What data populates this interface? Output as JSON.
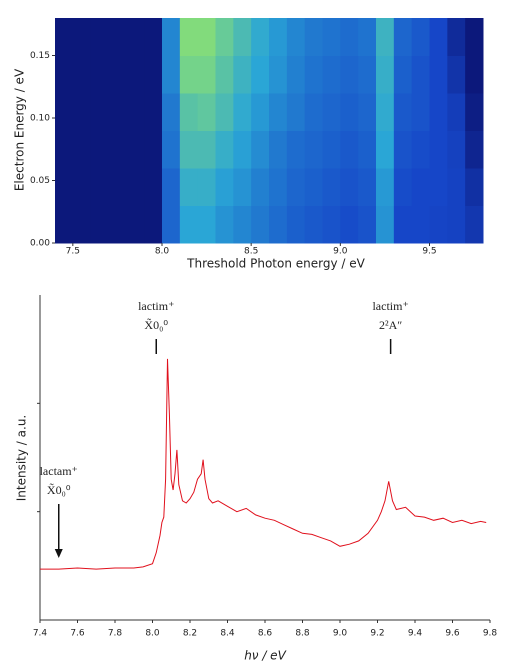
{
  "chart_data": [
    {
      "type": "heatmap",
      "x_label": "Threshold Photon energy / eV",
      "y_label": "Electron Energy / eV",
      "xlim": [
        7.4,
        9.8
      ],
      "ylim": [
        0,
        0.18
      ],
      "xticks": [
        7.5,
        {
          "value": 8,
          "label": "8.0"
        },
        8.5,
        {
          "value": 9,
          "label": "9.0"
        },
        9.5
      ],
      "yticks": [
        {
          "value": 0,
          "label": "0.00"
        },
        0.05,
        {
          "value": 0.1,
          "label": "0.10"
        },
        0.15
      ],
      "xbins": [
        7.4,
        7.5,
        7.6,
        7.7,
        7.8,
        7.9,
        8.0,
        8.1,
        8.2,
        8.3,
        8.4,
        8.5,
        8.6,
        8.7,
        8.8,
        8.9,
        9.0,
        9.1,
        9.2,
        9.3,
        9.4,
        9.5,
        9.6,
        9.7,
        9.8
      ],
      "ybins": [
        0,
        0.03,
        0.06,
        0.09,
        0.12,
        0.15,
        0.18
      ],
      "colormap": [
        [
          0,
          "#0a0f6b"
        ],
        [
          0.3,
          "#1646c8"
        ],
        [
          0.45,
          "#2aa6d6"
        ],
        [
          0.6,
          "#8fe36e"
        ]
      ],
      "z": [
        [
          0.05,
          0.05,
          0.05,
          0.05,
          0.05,
          0.05,
          0.35,
          0.45,
          0.45,
          0.42,
          0.4,
          0.38,
          0.36,
          0.34,
          0.33,
          0.32,
          0.31,
          0.32,
          0.42,
          0.3,
          0.3,
          0.29,
          0.28,
          0.22
        ],
        [
          0.05,
          0.05,
          0.05,
          0.05,
          0.05,
          0.05,
          0.35,
          0.47,
          0.47,
          0.44,
          0.42,
          0.39,
          0.37,
          0.35,
          0.34,
          0.33,
          0.32,
          0.33,
          0.43,
          0.31,
          0.3,
          0.3,
          0.28,
          0.18
        ],
        [
          0.05,
          0.05,
          0.05,
          0.05,
          0.05,
          0.05,
          0.37,
          0.5,
          0.5,
          0.47,
          0.44,
          0.41,
          0.38,
          0.36,
          0.35,
          0.34,
          0.33,
          0.34,
          0.45,
          0.32,
          0.31,
          0.3,
          0.27,
          0.12
        ],
        [
          0.05,
          0.05,
          0.05,
          0.05,
          0.05,
          0.05,
          0.38,
          0.52,
          0.53,
          0.5,
          0.46,
          0.43,
          0.4,
          0.38,
          0.36,
          0.35,
          0.34,
          0.35,
          0.46,
          0.33,
          0.32,
          0.3,
          0.25,
          0.08
        ],
        [
          0.05,
          0.05,
          0.05,
          0.05,
          0.05,
          0.05,
          0.4,
          0.56,
          0.56,
          0.52,
          0.48,
          0.45,
          0.42,
          0.39,
          0.37,
          0.36,
          0.35,
          0.36,
          0.47,
          0.34,
          0.32,
          0.3,
          0.2,
          0.05
        ],
        [
          0.05,
          0.05,
          0.05,
          0.05,
          0.05,
          0.05,
          0.4,
          0.58,
          0.58,
          0.54,
          0.5,
          0.46,
          0.43,
          0.4,
          0.38,
          0.37,
          0.36,
          0.37,
          0.48,
          0.35,
          0.33,
          0.3,
          0.15,
          0.05
        ]
      ]
    },
    {
      "type": "line",
      "x_label": "hν / eV",
      "y_label": "Intensity / a.u.",
      "xlim": [
        7.4,
        9.8
      ],
      "ylim": [
        0,
        3
      ],
      "xticks": [
        7.4,
        7.6,
        7.8,
        {
          "value": 8,
          "label": "8.0"
        },
        8.2,
        8.4,
        8.6,
        8.8,
        {
          "value": 9,
          "label": "9.0"
        },
        9.2,
        9.4,
        9.6,
        9.8
      ],
      "yticks": [
        1,
        2
      ],
      "ytick_labels": false,
      "color": "#e0101c",
      "x": [
        7.4,
        7.5,
        7.6,
        7.7,
        7.8,
        7.9,
        7.95,
        8.0,
        8.02,
        8.04,
        8.05,
        8.06,
        8.07,
        8.08,
        8.09,
        8.1,
        8.11,
        8.12,
        8.13,
        8.14,
        8.16,
        8.18,
        8.2,
        8.22,
        8.24,
        8.26,
        8.27,
        8.28,
        8.3,
        8.32,
        8.35,
        8.4,
        8.45,
        8.5,
        8.55,
        8.6,
        8.65,
        8.7,
        8.75,
        8.8,
        8.85,
        8.9,
        8.95,
        9.0,
        9.05,
        9.1,
        9.15,
        9.2,
        9.22,
        9.24,
        9.26,
        9.28,
        9.3,
        9.35,
        9.4,
        9.45,
        9.5,
        9.55,
        9.6,
        9.65,
        9.7,
        9.75,
        9.78
      ],
      "values": [
        0.47,
        0.47,
        0.48,
        0.47,
        0.48,
        0.48,
        0.49,
        0.52,
        0.62,
        0.78,
        0.9,
        0.95,
        1.3,
        2.41,
        1.9,
        1.3,
        1.2,
        1.35,
        1.57,
        1.25,
        1.1,
        1.08,
        1.12,
        1.18,
        1.3,
        1.35,
        1.48,
        1.3,
        1.12,
        1.08,
        1.1,
        1.05,
        1.0,
        1.03,
        0.97,
        0.94,
        0.92,
        0.88,
        0.84,
        0.8,
        0.79,
        0.76,
        0.73,
        0.68,
        0.7,
        0.73,
        0.8,
        0.92,
        1.0,
        1.1,
        1.28,
        1.1,
        1.02,
        1.04,
        0.96,
        0.95,
        0.92,
        0.94,
        0.9,
        0.92,
        0.89,
        0.91,
        0.9
      ],
      "annotations": [
        {
          "x": 8.02,
          "line1": "lactim⁺",
          "line2": "X̃0₀⁰",
          "style": "tick"
        },
        {
          "x": 9.27,
          "line1": "lactim⁺",
          "line2": "2²A″",
          "style": "tick"
        },
        {
          "x": 7.5,
          "line1": "lactam⁺",
          "line2": "X̃0₀⁰",
          "style": "arrow"
        }
      ]
    }
  ]
}
